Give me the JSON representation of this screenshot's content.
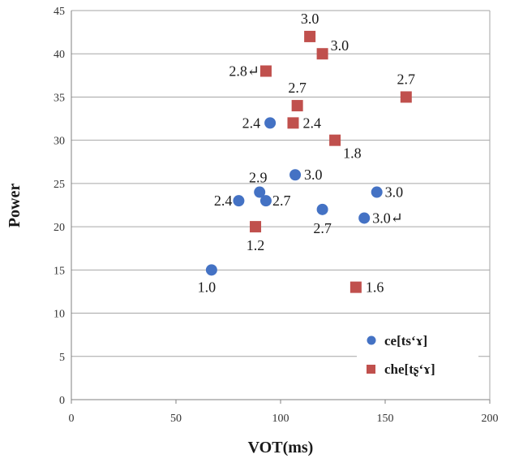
{
  "chart_data": {
    "type": "scatter",
    "xlabel": "VOT(ms)",
    "ylabel": "Power",
    "xlim": [
      0,
      200
    ],
    "ylim": [
      0,
      45
    ],
    "x_ticks": [
      0,
      50,
      100,
      150,
      200
    ],
    "y_ticks": [
      0,
      5,
      10,
      15,
      20,
      25,
      30,
      35,
      40,
      45
    ],
    "grid": "horizontal",
    "legend_position": "bottom-right",
    "series": [
      {
        "name": "ce[tsʻɤ]",
        "marker": "circle",
        "color": "#4472c4",
        "points": [
          {
            "x": 67,
            "y": 15,
            "label": "1.0"
          },
          {
            "x": 80,
            "y": 23,
            "label": "2.4"
          },
          {
            "x": 90,
            "y": 24,
            "label": "2.9"
          },
          {
            "x": 93,
            "y": 23,
            "label": "2.7"
          },
          {
            "x": 95,
            "y": 32,
            "label": "2.4"
          },
          {
            "x": 107,
            "y": 26,
            "label": "3.0"
          },
          {
            "x": 120,
            "y": 22,
            "label": "2.7"
          },
          {
            "x": 140,
            "y": 21,
            "label": "3.0↵"
          },
          {
            "x": 146,
            "y": 24,
            "label": "3.0"
          }
        ]
      },
      {
        "name": "che[tʂʻɤ]",
        "marker": "square",
        "color": "#c0504d",
        "points": [
          {
            "x": 88,
            "y": 20,
            "label": "1.2"
          },
          {
            "x": 93,
            "y": 38,
            "label": "2.8↵"
          },
          {
            "x": 106,
            "y": 32,
            "label": "2.4"
          },
          {
            "x": 108,
            "y": 34,
            "label": "2.7"
          },
          {
            "x": 114,
            "y": 42,
            "label": "3.0"
          },
          {
            "x": 120,
            "y": 40,
            "label": "3.0"
          },
          {
            "x": 126,
            "y": 30,
            "label": "1.8"
          },
          {
            "x": 136,
            "y": 13,
            "label": "1.6"
          },
          {
            "x": 160,
            "y": 35,
            "label": "2.7"
          }
        ]
      }
    ]
  }
}
